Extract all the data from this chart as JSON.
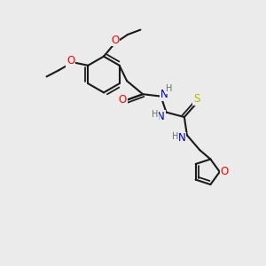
{
  "bg_color": "#ebebeb",
  "bond_color": "#1a1a1a",
  "bond_width": 1.5,
  "atom_colors": {
    "O": "#ff0000",
    "N": "#0000bb",
    "S": "#b8b800",
    "H": "#607070",
    "C": "#1a1a1a"
  },
  "font_size_atom": 8.5,
  "font_size_H": 7.0
}
